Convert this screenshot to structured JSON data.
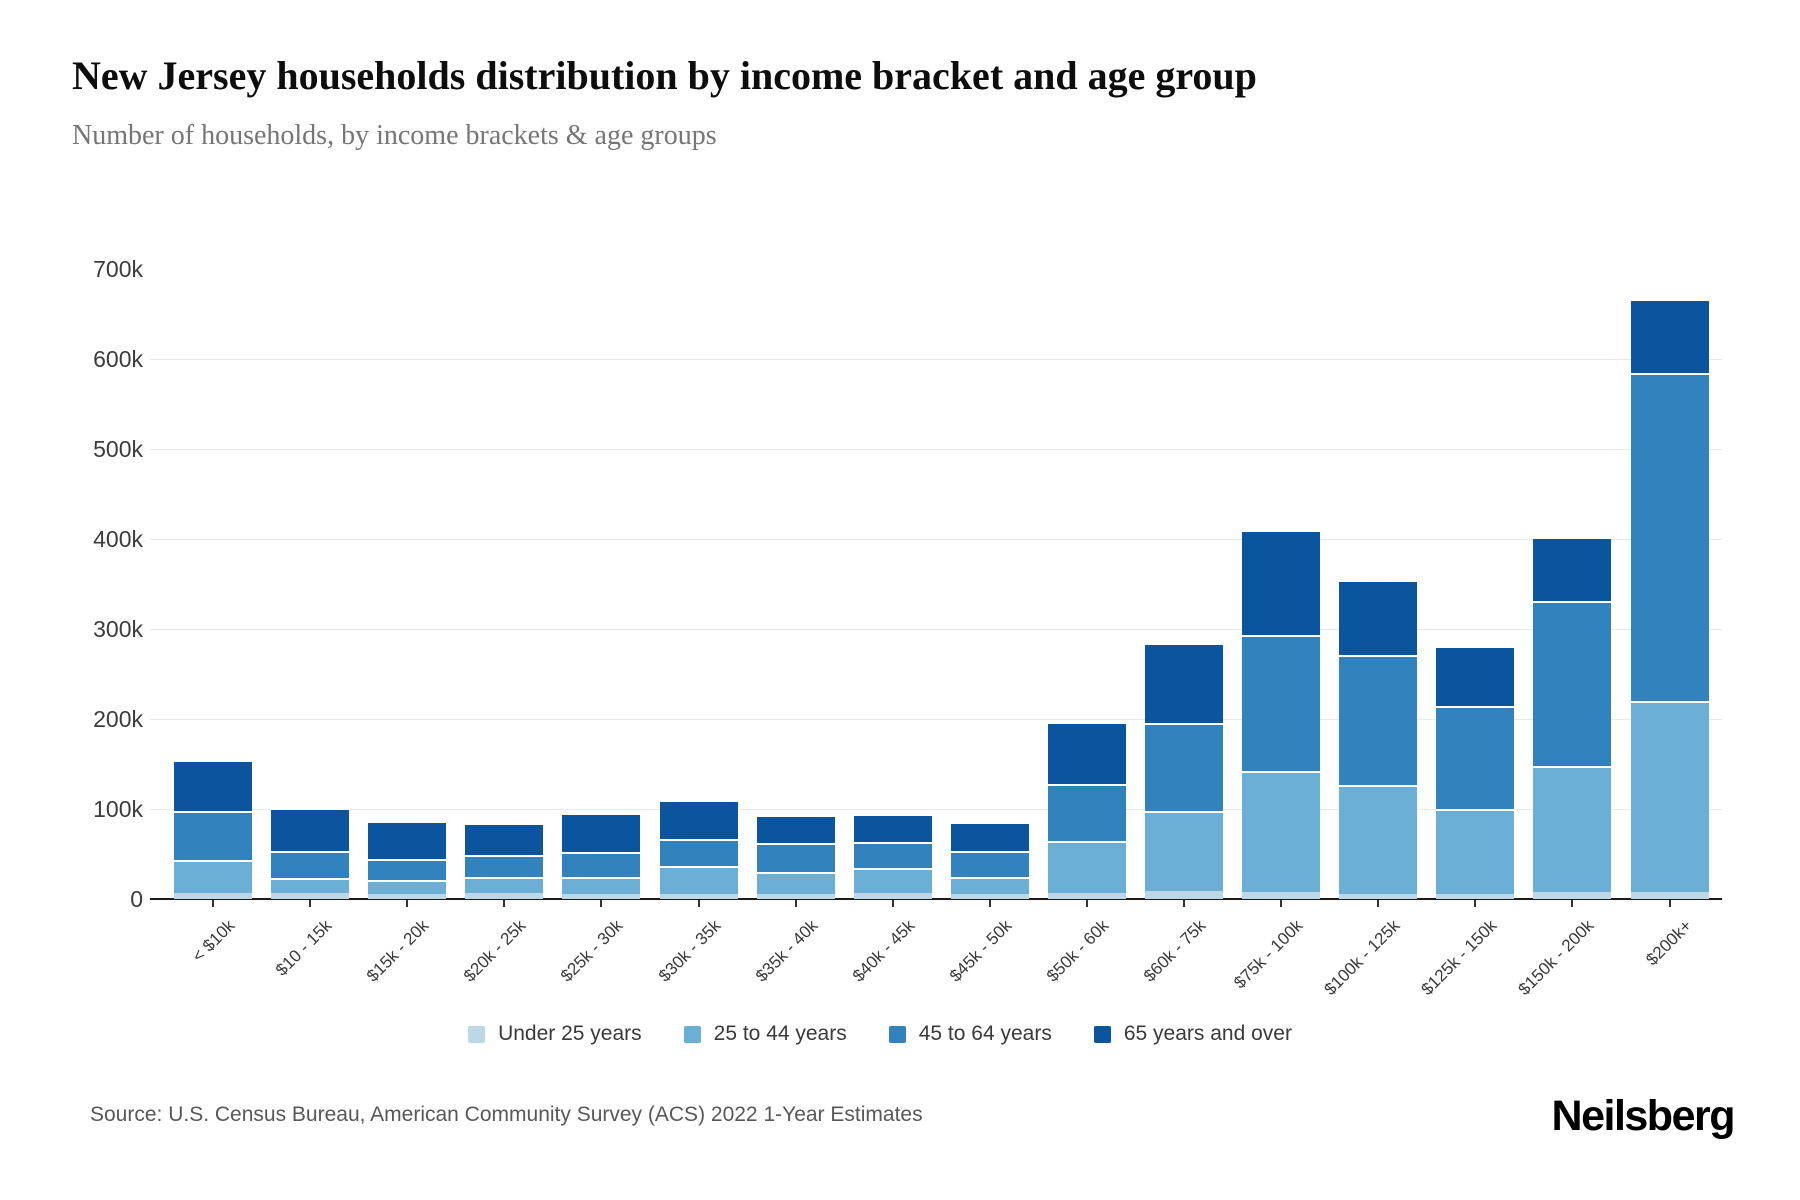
{
  "header": {
    "title": "New Jersey households distribution by income bracket and age group",
    "subtitle": "Number of households, by income brackets & age groups"
  },
  "chart_data": {
    "type": "bar",
    "stacked": true,
    "title": "New Jersey households distribution by income bracket and age group",
    "subtitle": "Number of households, by income brackets & age groups",
    "unit": "thousands of households",
    "grid": true,
    "legend_position": "bottom",
    "ylim": [
      0,
      700
    ],
    "yticks": [
      "0",
      "100k",
      "200k",
      "300k",
      "400k",
      "500k",
      "600k",
      "700k"
    ],
    "categories": [
      "< $10k",
      "$10 - 15k",
      "$15k - 20k",
      "$20k - 25k",
      "$25k - 30k",
      "$30k - 35k",
      "$35k - 40k",
      "$40k - 45k",
      "$45k - 50k",
      "$50k - 60k",
      "$60k - 75k",
      "$75k - 100k",
      "$100k - 125k",
      "$125k - 150k",
      "$150k - 200k",
      "$200k+"
    ],
    "series": [
      {
        "name": "Under 25 years",
        "color": "#bdd7e7",
        "values": [
          7,
          7,
          6,
          7,
          6,
          6,
          6,
          7,
          6,
          7,
          9,
          8,
          6,
          6,
          8,
          8
        ]
      },
      {
        "name": "25 to 44 years",
        "color": "#6baed6",
        "values": [
          36,
          16,
          15,
          17,
          19,
          31,
          24,
          27,
          19,
          57,
          89,
          134,
          121,
          94,
          140,
          212
        ]
      },
      {
        "name": "45 to 64 years",
        "color": "#3182bd",
        "values": [
          55,
          30,
          23,
          25,
          27,
          30,
          32,
          29,
          28,
          64,
          98,
          152,
          144,
          115,
          183,
          365
        ]
      },
      {
        "name": "65 years and over",
        "color": "#0b559f",
        "values": [
          57,
          48,
          43,
          36,
          44,
          43,
          31,
          32,
          33,
          69,
          89,
          116,
          84,
          66,
          72,
          82
        ]
      }
    ],
    "totals": [
      155,
      101,
      87,
      85,
      96,
      110,
      93,
      95,
      86,
      197,
      285,
      410,
      355,
      281,
      403,
      667
    ]
  },
  "footer": {
    "source": "Source: U.S. Census Bureau, American Community Survey (ACS) 2022 1-Year Estimates",
    "brand": "Neilsberg"
  }
}
